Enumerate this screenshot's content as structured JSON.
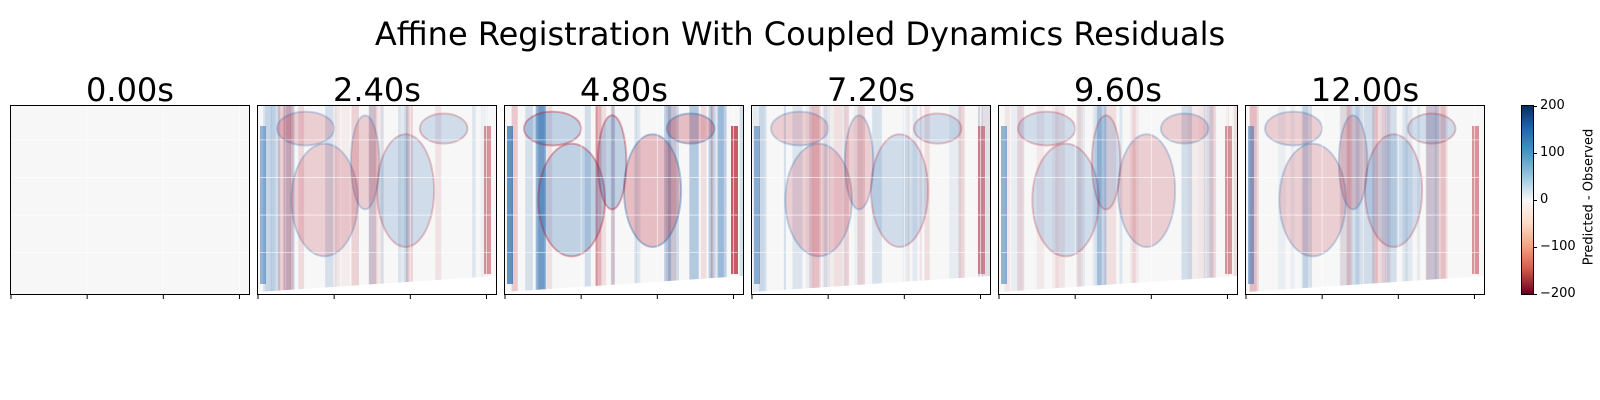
{
  "title": "Affine Registration With Coupled Dynamics Residuals",
  "chart_data": {
    "type": "heatmap",
    "title": "Affine Registration With Coupled Dynamics Residuals",
    "frames": [
      {
        "label": "0.00s",
        "time_s": 0.0,
        "residual": "none"
      },
      {
        "label": "2.40s",
        "time_s": 2.4,
        "residual": "moderate"
      },
      {
        "label": "4.80s",
        "time_s": 4.8,
        "residual": "high"
      },
      {
        "label": "7.20s",
        "time_s": 7.2,
        "residual": "moderate"
      },
      {
        "label": "9.60s",
        "time_s": 9.6,
        "residual": "moderate"
      },
      {
        "label": "12.00s",
        "time_s": 12.0,
        "residual": "moderate"
      }
    ],
    "xticklabels": [],
    "yticklabels": [],
    "grid": true,
    "colorbar": {
      "label": "Predicted - Observed",
      "colormap": "RdBu",
      "vmin": -200,
      "vmax": 200,
      "ticks": [
        200,
        100,
        0,
        -100,
        -200
      ],
      "tick_labels": [
        "200",
        "100",
        "0",
        "−100",
        "−200"
      ]
    }
  },
  "colors": {
    "positive": "#2166ac",
    "zero": "#f7f7f7",
    "negative": "#b2182b"
  }
}
